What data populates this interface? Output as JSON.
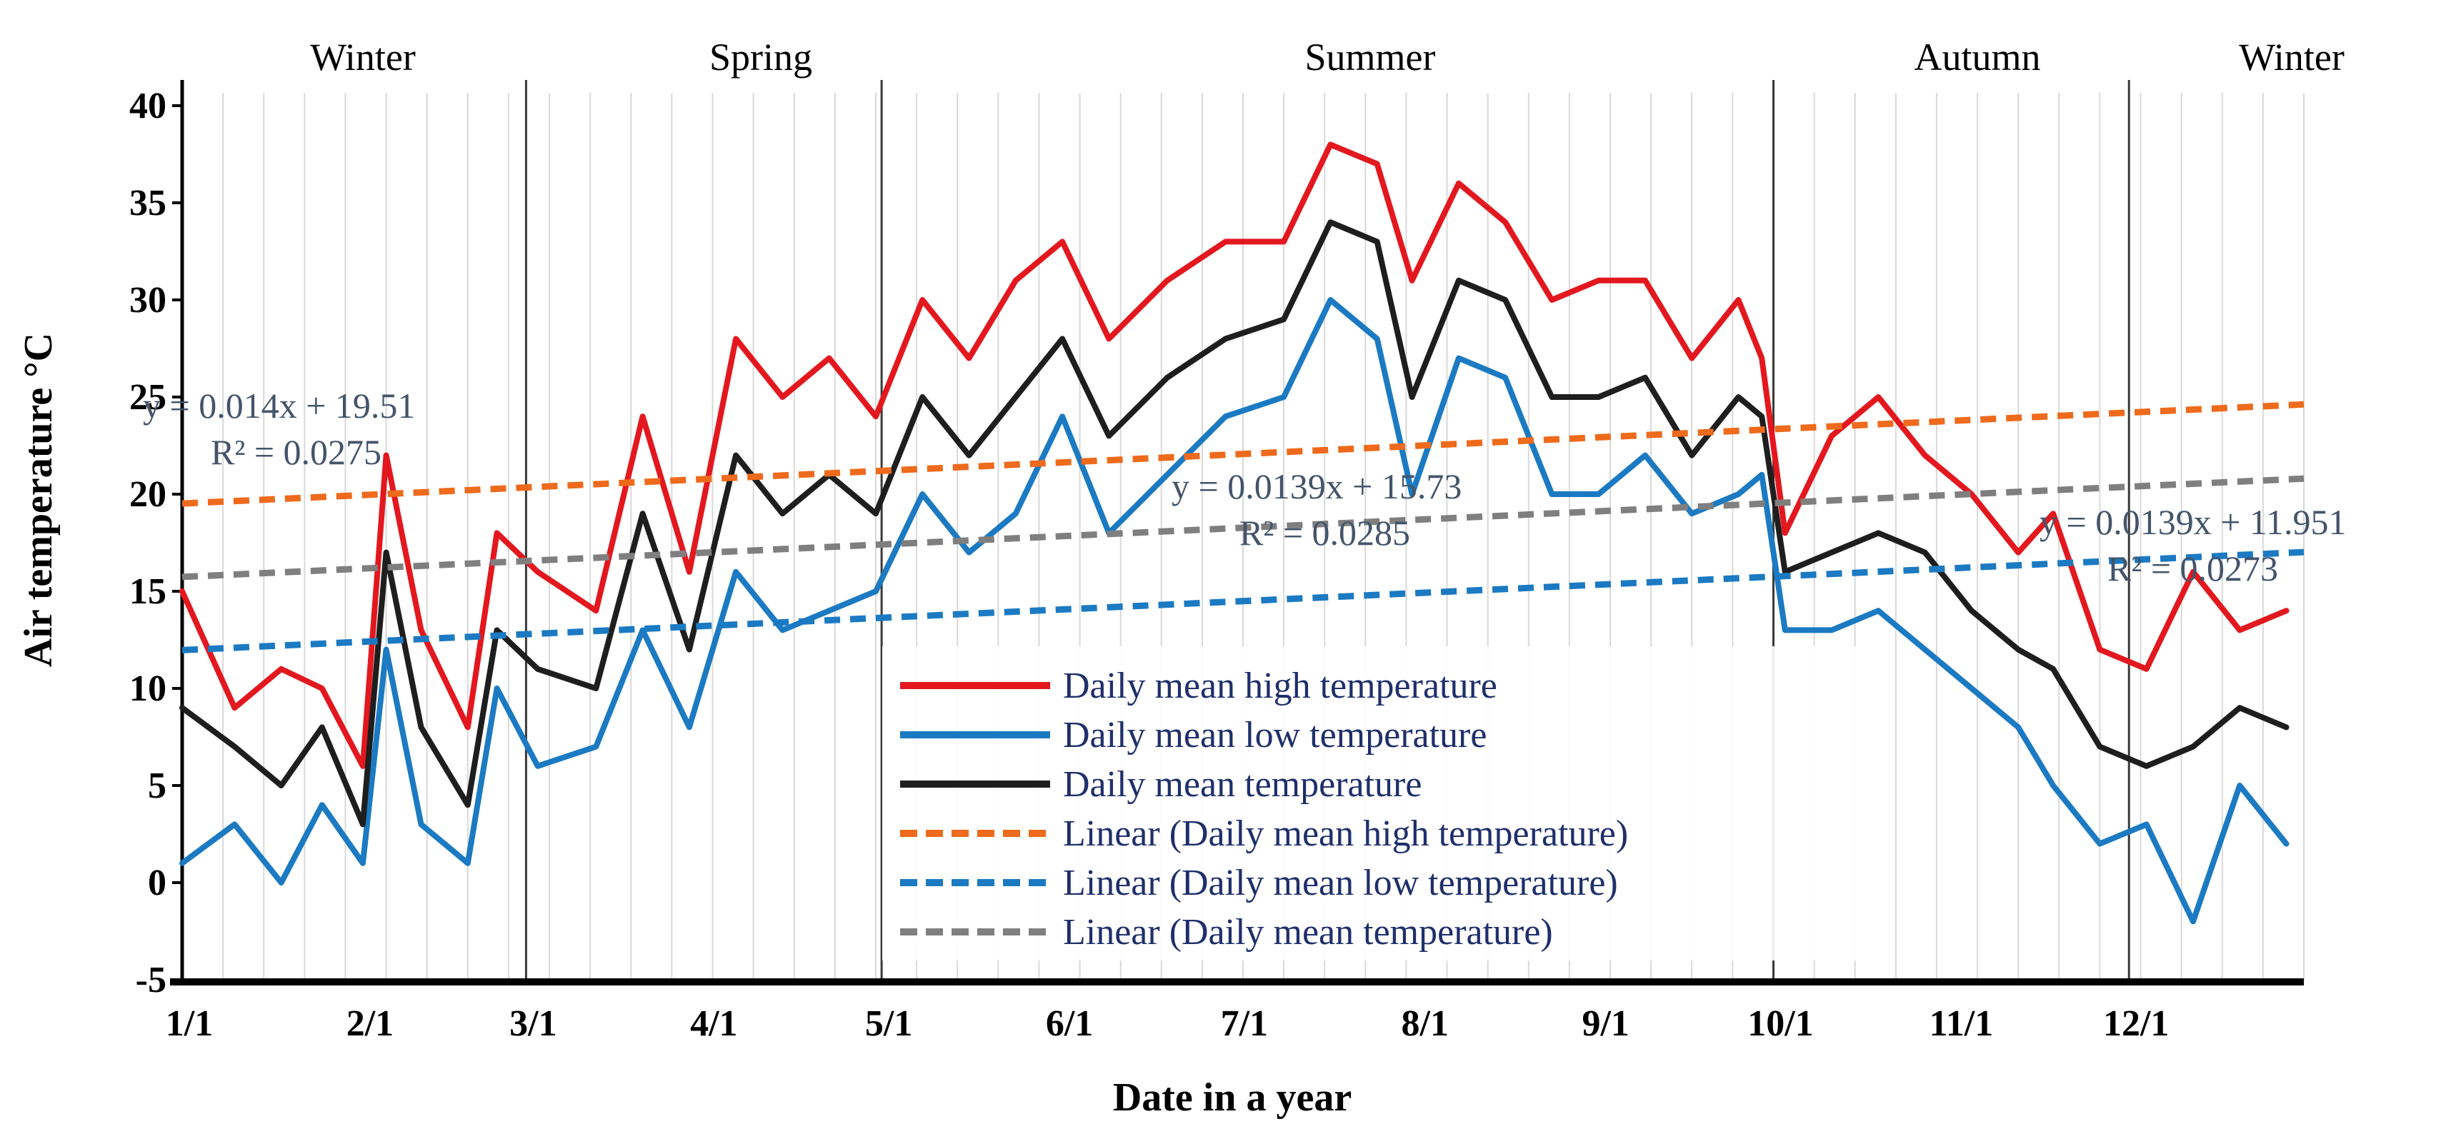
{
  "chart_data": {
    "type": "line",
    "xlabel": "Date in a year",
    "ylabel": "Air temperature °C",
    "ylim": [
      -5,
      40
    ],
    "y_ticks": [
      "-5",
      "0",
      "5",
      "10",
      "15",
      "20",
      "25",
      "30",
      "35",
      "40"
    ],
    "x_ticks": [
      "1/1",
      "2/1",
      "3/1",
      "4/1",
      "5/1",
      "6/1",
      "7/1",
      "8/1",
      "9/1",
      "10/1",
      "11/1",
      "12/1"
    ],
    "x_range_days": [
      1,
      365
    ],
    "season_boundaries_day": [
      60,
      121,
      274,
      335
    ],
    "seasons": [
      "Winter",
      "Spring",
      "Summer",
      "Autumn",
      "Winter"
    ],
    "grid": "vertical gridlines (light)",
    "legend_position": "center (lower middle of plot)",
    "colors": {
      "high": "#e3181f",
      "low": "#1b7ac2",
      "mean": "#1e1e1e",
      "trend_high": "#ee6a1c",
      "trend_low": "#1b7ac2",
      "trend_mean": "#7f7f7f"
    },
    "series": [
      {
        "name": "Daily mean high temperature",
        "style": "solid",
        "x_day": [
          1,
          10,
          18,
          25,
          32,
          36,
          42,
          50,
          55,
          62,
          72,
          80,
          88,
          96,
          104,
          112,
          120,
          128,
          136,
          144,
          152,
          160,
          170,
          180,
          190,
          198,
          206,
          212,
          220,
          228,
          236,
          244,
          252,
          260,
          268,
          272,
          276,
          284,
          292,
          300,
          308,
          316,
          322,
          330,
          338,
          346,
          354,
          362
        ],
        "values": [
          15,
          9,
          11,
          10,
          6,
          22,
          13,
          8,
          18,
          16,
          14,
          24,
          16,
          28,
          25,
          27,
          24,
          30,
          27,
          31,
          33,
          28,
          31,
          33,
          33,
          38,
          37,
          31,
          36,
          34,
          30,
          31,
          31,
          27,
          30,
          27,
          18,
          23,
          25,
          22,
          20,
          17,
          19,
          12,
          11,
          16,
          13,
          14
        ]
      },
      {
        "name": "Daily mean low temperature",
        "style": "solid",
        "x_day": [
          1,
          10,
          18,
          25,
          32,
          36,
          42,
          50,
          55,
          62,
          72,
          80,
          88,
          96,
          104,
          112,
          120,
          128,
          136,
          144,
          152,
          160,
          170,
          180,
          190,
          198,
          206,
          212,
          220,
          228,
          236,
          244,
          252,
          260,
          268,
          272,
          276,
          284,
          292,
          300,
          308,
          316,
          322,
          330,
          338,
          346,
          354,
          362
        ],
        "values": [
          1,
          3,
          0,
          4,
          1,
          12,
          3,
          1,
          10,
          6,
          7,
          13,
          8,
          16,
          13,
          14,
          15,
          20,
          17,
          19,
          24,
          18,
          21,
          24,
          25,
          30,
          28,
          20,
          27,
          26,
          20,
          20,
          22,
          19,
          20,
          21,
          13,
          13,
          14,
          12,
          10,
          8,
          5,
          2,
          3,
          -2,
          5,
          2
        ]
      },
      {
        "name": "Daily mean temperature",
        "style": "solid",
        "x_day": [
          1,
          10,
          18,
          25,
          32,
          36,
          42,
          50,
          55,
          62,
          72,
          80,
          88,
          96,
          104,
          112,
          120,
          128,
          136,
          144,
          152,
          160,
          170,
          180,
          190,
          198,
          206,
          212,
          220,
          228,
          236,
          244,
          252,
          260,
          268,
          272,
          276,
          284,
          292,
          300,
          308,
          316,
          322,
          330,
          338,
          346,
          354,
          362
        ],
        "values": [
          9,
          7,
          5,
          8,
          3,
          17,
          8,
          4,
          13,
          11,
          10,
          19,
          12,
          22,
          19,
          21,
          19,
          25,
          22,
          25,
          28,
          23,
          26,
          28,
          29,
          34,
          33,
          25,
          31,
          30,
          25,
          25,
          26,
          22,
          25,
          24,
          16,
          17,
          18,
          17,
          14,
          12,
          11,
          7,
          6,
          7,
          9,
          8
        ]
      },
      {
        "name": "Linear (Daily mean high temperature)",
        "style": "dashed",
        "x_day": [
          1,
          365
        ],
        "values": [
          19.52,
          24.62
        ],
        "equation": "y = 0.014x + 19.51",
        "r_squared": "R² = 0.0275"
      },
      {
        "name": "Linear (Daily mean low temperature)",
        "style": "dashed",
        "x_day": [
          1,
          365
        ],
        "values": [
          11.97,
          17.02
        ],
        "equation": "y = 0.0139x + 11.951",
        "r_squared": "R² = 0.0273"
      },
      {
        "name": "Linear (Daily mean temperature)",
        "style": "dashed",
        "x_day": [
          1,
          365
        ],
        "values": [
          15.74,
          20.8
        ],
        "equation": "y = 0.0139x + 15.73",
        "r_squared": "R² = 0.0285"
      }
    ]
  }
}
